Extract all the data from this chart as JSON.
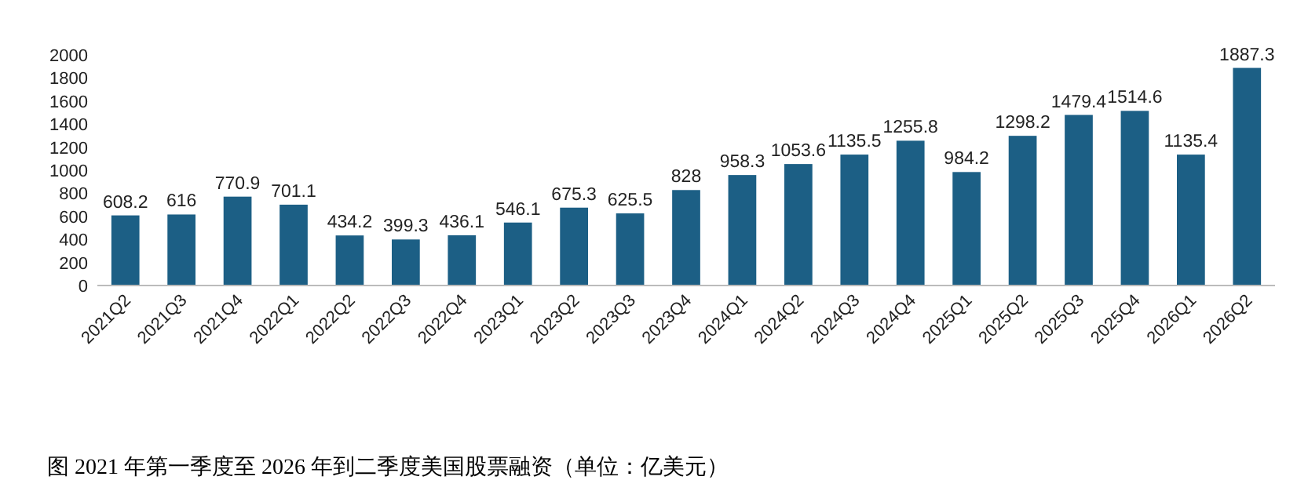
{
  "chart_data": {
    "type": "bar",
    "categories": [
      "2021Q2",
      "2021Q3",
      "2021Q4",
      "2022Q1",
      "2022Q2",
      "2022Q3",
      "2022Q4",
      "2023Q1",
      "2023Q2",
      "2023Q3",
      "2023Q4",
      "2024Q1",
      "2024Q2",
      "2024Q3",
      "2024Q4",
      "2025Q1",
      "2025Q2",
      "2025Q3",
      "2025Q4",
      "2026Q1",
      "2026Q2"
    ],
    "values": [
      608.2,
      616,
      770.9,
      701.1,
      434.2,
      399.3,
      436.1,
      546.1,
      675.3,
      625.5,
      828,
      958.3,
      1053.6,
      1135.5,
      1255.8,
      984.2,
      1298.2,
      1479.4,
      1514.6,
      1135.4,
      1887.3
    ],
    "color": "#1c5f85",
    "ylim": [
      0,
      2000
    ],
    "yticks": [
      0,
      200,
      400,
      600,
      800,
      1000,
      1200,
      1400,
      1600,
      1800,
      2000
    ],
    "data_labels": true,
    "annotations": [
      "图 2021 年第一季度至 2026 年到二季度美国股票融资（单位：亿美元）"
    ]
  }
}
